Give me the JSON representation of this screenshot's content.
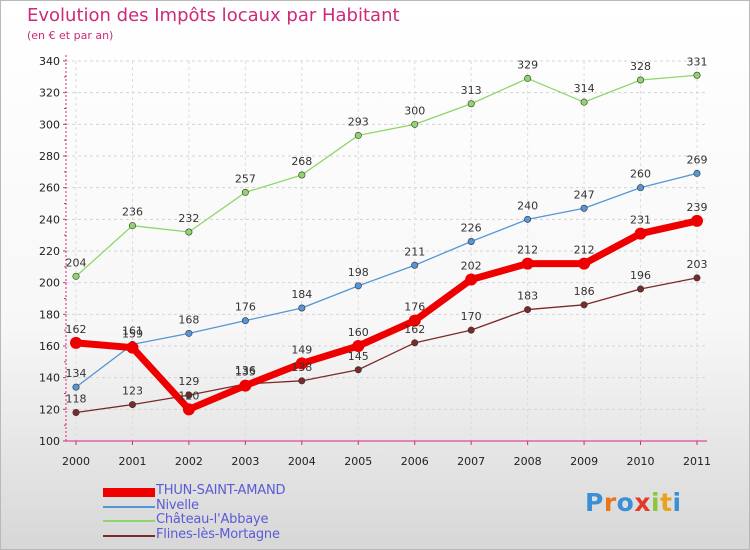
{
  "header": {
    "title": "Evolution des Impôts locaux par Habitant",
    "subtitle": "(en € et par an)"
  },
  "brand": {
    "letters": [
      "P",
      "r",
      "o",
      "x",
      "i",
      "t",
      "i"
    ],
    "colors": [
      "#3b8fd6",
      "#e8761c",
      "#3b8fd6",
      "#e23a2a",
      "#8cc63f",
      "#e8a21c",
      "#3b8fd6"
    ]
  },
  "chart_data": {
    "type": "line",
    "x": [
      "2000",
      "2001",
      "2002",
      "2003",
      "2004",
      "2005",
      "2006",
      "2007",
      "2008",
      "2009",
      "2010",
      "2011"
    ],
    "ylim": [
      100,
      340
    ],
    "yticks": [
      100,
      120,
      140,
      160,
      180,
      200,
      220,
      240,
      260,
      280,
      300,
      320,
      340
    ],
    "grid": "horizontal dashed",
    "legend_position": "bottom-left",
    "series": [
      {
        "name": "THUN-SAINT-AMAND",
        "values": [
          162,
          159,
          120,
          135,
          149,
          160,
          176,
          202,
          212,
          212,
          231,
          239
        ],
        "color": "#ee0000",
        "emphasis": true
      },
      {
        "name": "Nivelle",
        "values": [
          134,
          161,
          168,
          176,
          184,
          198,
          211,
          226,
          240,
          247,
          260,
          269
        ],
        "color": "#5596d6",
        "emphasis": false
      },
      {
        "name": "Château-l'Abbaye",
        "values": [
          204,
          236,
          232,
          257,
          268,
          293,
          300,
          313,
          329,
          314,
          328,
          331
        ],
        "color": "#8fd66a",
        "emphasis": false
      },
      {
        "name": "Flines-lès-Mortagne",
        "values": [
          118,
          123,
          129,
          136,
          138,
          145,
          162,
          170,
          183,
          186,
          196,
          203
        ],
        "color": "#7a2a2a",
        "emphasis": false
      }
    ]
  }
}
